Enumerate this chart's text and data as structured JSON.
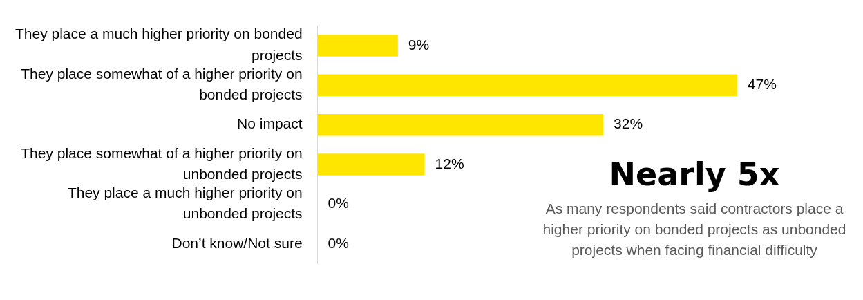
{
  "chart_data": {
    "type": "bar",
    "orientation": "horizontal",
    "categories": [
      "They place a much higher priority on bonded projects",
      "They place somewhat of a higher priority on bonded projects",
      "No impact",
      "They place somewhat of a higher priority on unbonded projects",
      "They place a much higher priority on unbonded projects",
      "Don’t know/Not sure"
    ],
    "values": [
      9,
      47,
      32,
      12,
      0,
      0
    ],
    "value_labels": [
      "9%",
      "47%",
      "32%",
      "12%",
      "0%",
      "0%"
    ],
    "color": "#ffe600",
    "grid": false,
    "legend": false,
    "annotations": [
      "Nearly 5x",
      "As many respondents said contractors place a higher priority on bonded projects as unbonded projects when facing financial difficulty"
    ]
  }
}
